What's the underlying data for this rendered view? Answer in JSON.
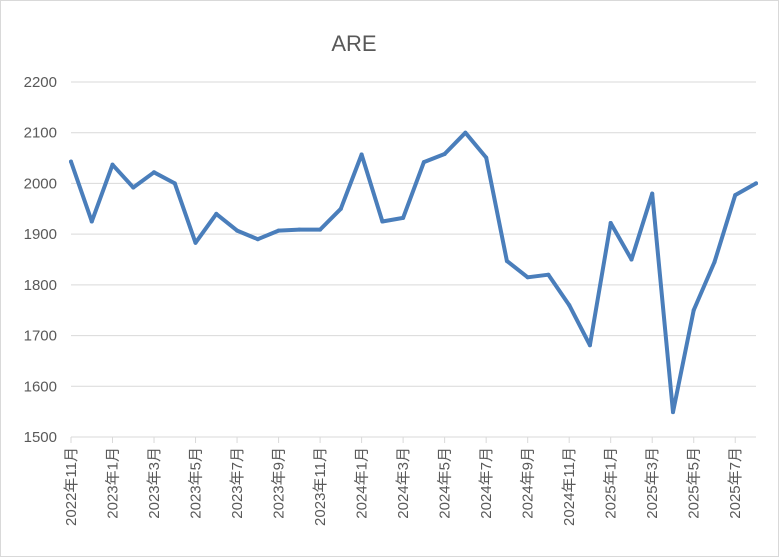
{
  "chart_data": {
    "type": "line",
    "title": "ARE",
    "xlabel": "",
    "ylabel": "",
    "ylim": [
      1500,
      2200
    ],
    "yticks": [
      1500,
      1600,
      1700,
      1800,
      1900,
      2000,
      2100,
      2200
    ],
    "grid": true,
    "legend": "none",
    "x_tick_labels": [
      "2022年11月",
      "2023年1月",
      "2023年3月",
      "2023年5月",
      "2023年7月",
      "2023年9月",
      "2023年11月",
      "2024年1月",
      "2024年3月",
      "2024年5月",
      "2024年7月",
      "2024年9月",
      "2024年11月",
      "2025年1月",
      "2025年3月",
      "2025年5月",
      "2025年7月"
    ],
    "x": [
      "2022年11月",
      "2022年12月",
      "2023年1月",
      "2023年2月",
      "2023年3月",
      "2023年4月",
      "2023年5月",
      "2023年6月",
      "2023年7月",
      "2023年8月",
      "2023年9月",
      "2023年10月",
      "2023年11月",
      "2023年12月",
      "2024年1月",
      "2024年2月",
      "2024年3月",
      "2024年4月",
      "2024年5月",
      "2024年6月",
      "2024年7月",
      "2024年8月",
      "2024年9月",
      "2024年10月",
      "2024年11月",
      "2024年12月",
      "2025年1月",
      "2025年2月",
      "2025年3月",
      "2025年4月",
      "2025年5月",
      "2025年6月",
      "2025年7月",
      "2025年8月"
    ],
    "series": [
      {
        "color": "#4a7ebb",
        "values": [
          2043,
          1925,
          2037,
          1992,
          2022,
          2000,
          1883,
          1940,
          1907,
          1890,
          1907,
          1909,
          1909,
          1950,
          2057,
          1925,
          1932,
          2042,
          2058,
          2100,
          2051,
          1847,
          1815,
          1820,
          1760,
          1681,
          1922,
          1850,
          1980,
          1549,
          1750,
          1845,
          1977,
          2000
        ]
      }
    ]
  }
}
